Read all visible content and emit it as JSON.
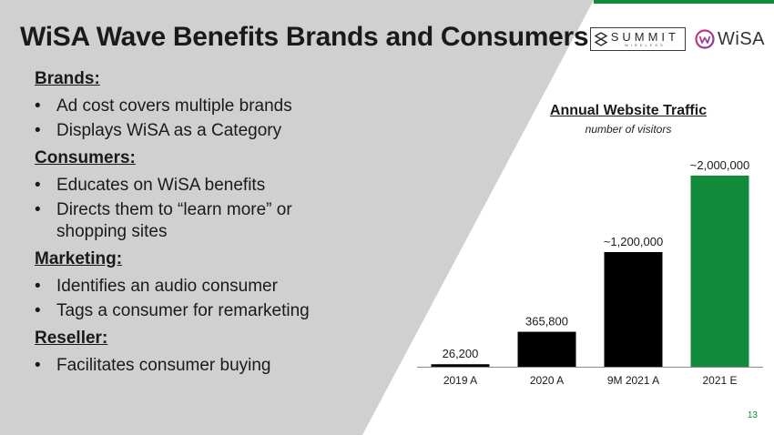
{
  "slide": {
    "title": "WiSA Wave Benefits Brands and Consumers",
    "page_number": "13",
    "accent_color": "#118a3c",
    "panel_color": "#d0d0d0"
  },
  "bullets": {
    "sections": [
      {
        "heading": "Brands:",
        "items": [
          "Ad cost covers multiple brands",
          "Displays WiSA as a Category"
        ]
      },
      {
        "heading": "Consumers:",
        "items": [
          "Educates on WiSA benefits",
          "Directs them to “learn more” or shopping sites"
        ]
      },
      {
        "heading": "Marketing:",
        "items": [
          "Identifies an audio consumer",
          "Tags a consumer for remarketing"
        ]
      },
      {
        "heading": "Reseller:",
        "items": [
          "Facilitates consumer buying"
        ]
      }
    ]
  },
  "logos": {
    "summit": {
      "word": "SUMMIT",
      "sub": "WIRELESS",
      "icon": "summit-s-icon"
    },
    "wisa": {
      "word": "WiSA",
      "icon": "wisa-w-icon"
    }
  },
  "chart_data": {
    "type": "bar",
    "title": "Annual Website Traffic",
    "subtitle": "number of visitors",
    "categories": [
      "2019 A",
      "2020 A",
      "9M 2021 A",
      "2021 E"
    ],
    "values": [
      26200,
      365800,
      1200000,
      2000000
    ],
    "data_labels": [
      "26,200",
      "365,800",
      "~1,200,000",
      "~2,000,000"
    ],
    "bar_colors": [
      "#000000",
      "#000000",
      "#000000",
      "#118a3c"
    ],
    "ylim": [
      0,
      2000000
    ],
    "grid": false,
    "legend": "none"
  }
}
